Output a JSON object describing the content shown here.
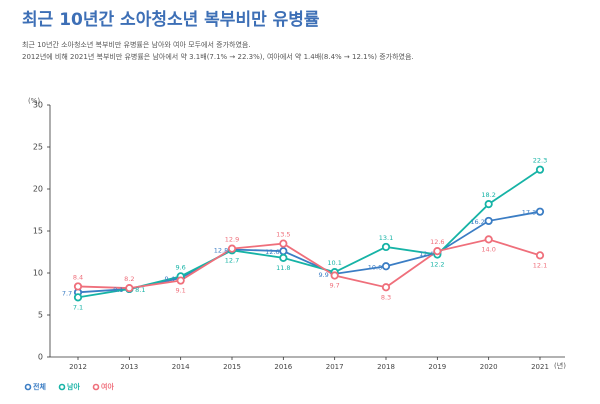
{
  "chart_data": {
    "type": "line",
    "title": "최근 10년간 소아청소년 복부비만 유병률",
    "subtitle": [
      "최근 10년간 소아청소년 복부비만 유병률은 남아와 여아 모두에서 증가하였음.",
      "2012년에 비해 2021년 복부비만 유병률은 남아에서 약 3.1배(7.1% → 22.3%), 여아에서 약 1.4배(8.4% → 12.1%) 증가하였음."
    ],
    "y_label": "(%)",
    "x_label": "(년)",
    "categories": [
      "2012",
      "2013",
      "2014",
      "2015",
      "2016",
      "2017",
      "2018",
      "2019",
      "2020",
      "2021"
    ],
    "ylim": [
      0,
      30
    ],
    "yticks": [
      0,
      5,
      10,
      15,
      20,
      25,
      30
    ],
    "series": [
      {
        "name": "전체",
        "color": "#3b7dc4",
        "values": [
          7.7,
          8.1,
          9.4,
          12.8,
          12.6,
          9.9,
          10.8,
          12.4,
          16.2,
          17.3
        ]
      },
      {
        "name": "남아",
        "color": "#16b3a6",
        "values": [
          7.1,
          8.1,
          9.6,
          12.7,
          11.8,
          10.1,
          13.1,
          12.2,
          18.2,
          22.3
        ]
      },
      {
        "name": "여아",
        "color": "#ef6f7b",
        "values": [
          8.4,
          8.2,
          9.1,
          12.9,
          13.5,
          9.7,
          8.3,
          12.6,
          14.0,
          12.1
        ],
        "value_labels": [
          "8.4",
          "8.2",
          "9.1",
          "12.9",
          "13.5",
          "9.7",
          "8.3",
          "12.6",
          "14.0",
          "12.1"
        ]
      }
    ]
  }
}
